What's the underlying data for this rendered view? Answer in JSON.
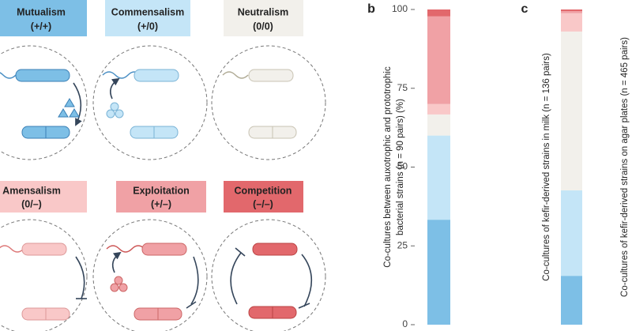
{
  "interactions": [
    {
      "name": "Mutualism",
      "sign": "(+/+)"
    },
    {
      "name": "Commensalism",
      "sign": "(+/0)"
    },
    {
      "name": "Neutralism",
      "sign": "(0/0)"
    },
    {
      "name": "Amensalism",
      "sign": "(0/–)"
    },
    {
      "name": "Exploitation",
      "sign": "(+/–)"
    },
    {
      "name": "Competition",
      "sign": "(–/–)"
    }
  ],
  "chart_data": [
    {
      "type": "stacked_bar",
      "panel": "b",
      "ylabel": [
        "Co-cultures between auxotrophic and prototrophic",
        "bacterial strains (n = 90 pairs) (%)"
      ],
      "values": [
        33.3,
        26.7,
        6.7,
        3.3,
        27.8,
        2.2
      ],
      "colors": [
        "#7dbfe6",
        "#c4e5f7",
        "#f2f0eb",
        "#f9c8c8",
        "#f0a1a5",
        "#e2686c"
      ],
      "ylim": [
        0,
        100
      ],
      "yticks": [
        0,
        25,
        50,
        75,
        100
      ]
    },
    {
      "type": "stacked_bar",
      "panel": "c",
      "ylabel": [
        "Co-cultures of kefir-derived strains in milk (n = 136 pairs)"
      ],
      "values": [
        15.5,
        27.1,
        50.4,
        5.8,
        0.7,
        0.5
      ],
      "colors": [
        "#7dbfe6",
        "#c4e5f7",
        "#f2f0eb",
        "#f9c8c8",
        "#f0a1a5",
        "#e2686c"
      ],
      "ylim": [
        0,
        100
      ]
    },
    {
      "type": "stacked_bar",
      "ylabel": [
        "Co-cultures of kefir-derived strains on agar plates (n = 465 pairs)"
      ]
    }
  ]
}
